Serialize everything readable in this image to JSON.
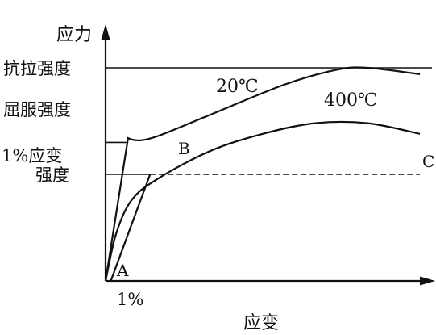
{
  "chart_data": {
    "type": "line",
    "title": "",
    "xlabel": "应变",
    "ylabel": "应力",
    "x_tick_label": "1%",
    "y_tick_labels": [
      "抗拉强度",
      "屈服强度",
      "1%应变",
      "强度"
    ],
    "series": [
      {
        "name": "20℃",
        "points": [
          [
            0,
            0
          ],
          [
            0.43,
            0.67
          ],
          [
            0.5,
            0.65
          ],
          [
            1,
            0.68
          ],
          [
            2,
            0.78
          ],
          [
            3.4,
            0.92
          ],
          [
            4.4,
            0.99
          ],
          [
            5,
            1.0
          ],
          [
            6,
            0.97
          ]
        ]
      },
      {
        "name": "400℃",
        "points": [
          [
            0,
            0
          ],
          [
            0.2,
            0.22
          ],
          [
            0.5,
            0.38
          ],
          [
            1,
            0.48
          ],
          [
            2,
            0.61
          ],
          [
            3,
            0.69
          ],
          [
            4,
            0.74
          ],
          [
            5,
            0.74
          ],
          [
            6,
            0.69
          ]
        ]
      }
    ],
    "offset_line": {
      "from_label": "A",
      "to_label": "B",
      "x_from": 0.1,
      "x_to": 0.85
    },
    "reference_line": {
      "y": 0.5,
      "label": "C"
    },
    "point_labels": {
      "A": "A",
      "B": "B",
      "C": "C"
    },
    "yield_strength": 0.65,
    "tensile_strength": 1.0,
    "one_percent_strength": 0.5,
    "xlim": [
      0,
      6
    ],
    "ylim": [
      0,
      1.0
    ]
  }
}
